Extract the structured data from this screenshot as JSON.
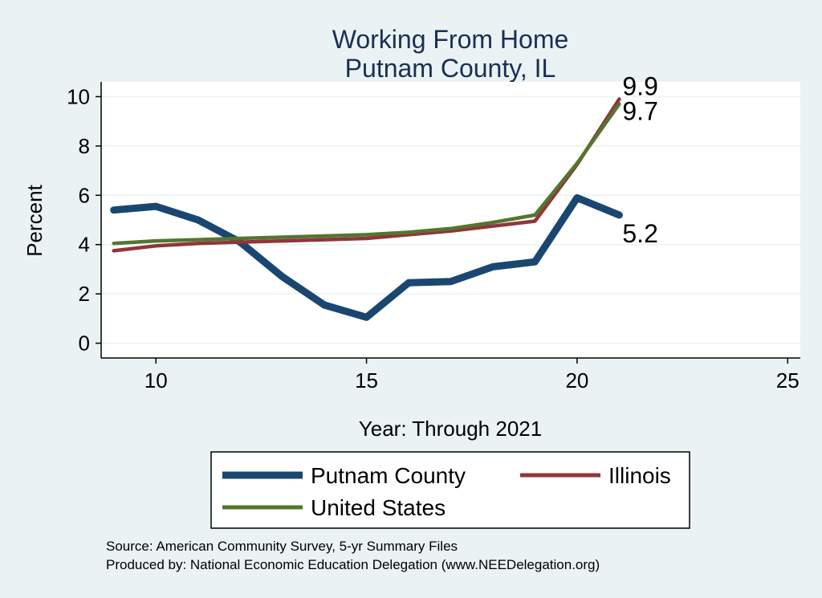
{
  "chart_data": {
    "type": "line",
    "title": [
      "Working From Home",
      "Putnam County, IL"
    ],
    "xlabel": "Year: Through 2021",
    "ylabel": "Percent",
    "xlim": [
      8.7,
      25.3
    ],
    "ylim": [
      -0.6,
      10.6
    ],
    "xticks": [
      10,
      15,
      20,
      25
    ],
    "yticks": [
      0,
      2,
      4,
      6,
      8,
      10
    ],
    "grid": true,
    "legend_position": "bottom",
    "series": [
      {
        "name": "Putnam County",
        "color": "#1a476f",
        "x": [
          9,
          10,
          11,
          12,
          13,
          14,
          15,
          16,
          17,
          18,
          19,
          20,
          21
        ],
        "y": [
          5.4,
          5.55,
          5.0,
          4.1,
          2.7,
          1.55,
          1.05,
          2.45,
          2.5,
          3.1,
          3.3,
          5.9,
          5.2
        ],
        "end_label": "5.2"
      },
      {
        "name": "Illinois",
        "color": "#90353b",
        "x": [
          9,
          10,
          11,
          12,
          13,
          14,
          15,
          16,
          17,
          18,
          19,
          20,
          21
        ],
        "y": [
          3.75,
          3.95,
          4.05,
          4.1,
          4.15,
          4.2,
          4.25,
          4.4,
          4.55,
          4.75,
          4.95,
          7.25,
          9.9
        ],
        "end_label": "9.9"
      },
      {
        "name": "United States",
        "color": "#55752f",
        "x": [
          9,
          10,
          11,
          12,
          13,
          14,
          15,
          16,
          17,
          18,
          19,
          20,
          21
        ],
        "y": [
          4.05,
          4.15,
          4.2,
          4.25,
          4.3,
          4.35,
          4.4,
          4.5,
          4.65,
          4.9,
          5.2,
          7.3,
          9.7
        ],
        "end_label": "9.7"
      }
    ],
    "notes": [
      "Source: American Community Survey, 5-yr Summary Files",
      "Produced by: National Economic Education Delegation (www.NEEDelegation.org)"
    ]
  }
}
